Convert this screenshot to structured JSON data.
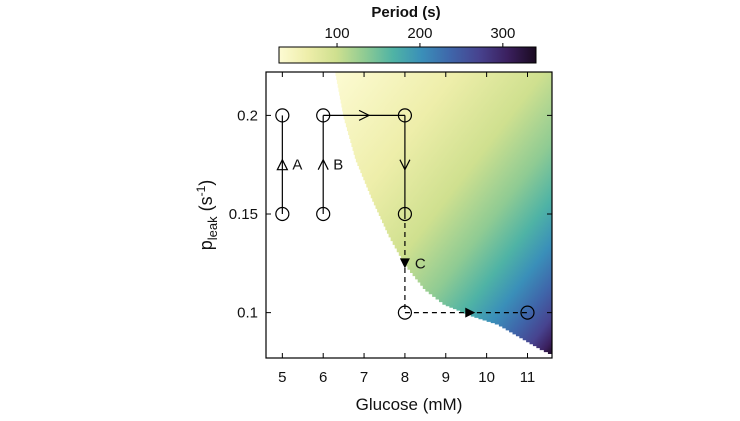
{
  "chart_data": {
    "type": "heatmap",
    "xlabel": "Glucose (mM)",
    "ylabel_base": "p",
    "ylabel_sub": "leak",
    "ylabel_unit_open": " (s",
    "ylabel_unit_sup": "-1",
    "ylabel_unit_close": ")",
    "xticks": [
      5,
      6,
      7,
      8,
      9,
      10,
      11
    ],
    "xtick_labels": [
      "5",
      "6",
      "7",
      "8",
      "9",
      "10",
      "11"
    ],
    "yticks": [
      0.1,
      0.15,
      0.2
    ],
    "ytick_labels": [
      "0.1",
      "0.15",
      "0.2"
    ],
    "xlim": [
      4.6,
      11.6
    ],
    "ylim": [
      0.077,
      0.222
    ],
    "colorbar": {
      "title": "Period (s)",
      "range": [
        30,
        340
      ],
      "ticks": [
        100,
        200,
        300
      ],
      "tick_labels": [
        "100",
        "200",
        "300"
      ],
      "colormap": [
        "#fdfbd3",
        "#eeeeaa",
        "#cfe08f",
        "#8fcb93",
        "#4fb3a5",
        "#3a8fb9",
        "#3f66aa",
        "#47438f",
        "#3b205f",
        "#1a0a20"
      ]
    },
    "region": {
      "boundary": [
        {
          "glucose": 6.3,
          "pleak": 0.222
        },
        {
          "glucose": 6.5,
          "pleak": 0.2
        },
        {
          "glucose": 6.8,
          "pleak": 0.178
        },
        {
          "glucose": 7.2,
          "pleak": 0.158
        },
        {
          "glucose": 7.6,
          "pleak": 0.14
        },
        {
          "glucose": 8.0,
          "pleak": 0.125
        },
        {
          "glucose": 8.5,
          "pleak": 0.112
        },
        {
          "glucose": 9.0,
          "pleak": 0.104
        },
        {
          "glucose": 9.7,
          "pleak": 0.098
        },
        {
          "glucose": 10.3,
          "pleak": 0.094
        },
        {
          "glucose": 10.8,
          "pleak": 0.088
        },
        {
          "glucose": 11.3,
          "pleak": 0.082
        },
        {
          "glucose": 11.6,
          "pleak": 0.079
        }
      ],
      "period_range": [
        30,
        340
      ]
    },
    "points": [
      {
        "glucose": 5,
        "pleak": 0.2
      },
      {
        "glucose": 5,
        "pleak": 0.15
      },
      {
        "glucose": 6,
        "pleak": 0.2
      },
      {
        "glucose": 6,
        "pleak": 0.15
      },
      {
        "glucose": 8,
        "pleak": 0.2
      },
      {
        "glucose": 8,
        "pleak": 0.15
      },
      {
        "glucose": 8,
        "pleak": 0.1
      },
      {
        "glucose": 11,
        "pleak": 0.1
      }
    ],
    "paths": [
      {
        "label": "A",
        "style": "solid",
        "arrow": "open-triangle-up",
        "segments": [
          [
            {
              "glucose": 5,
              "pleak": 0.15
            },
            {
              "glucose": 5,
              "pleak": 0.2
            }
          ]
        ],
        "arrow_at": {
          "glucose": 5,
          "pleak": 0.175
        }
      },
      {
        "label": "B",
        "style": "solid",
        "arrow": "chevron-up",
        "segments": [
          [
            {
              "glucose": 6,
              "pleak": 0.15
            },
            {
              "glucose": 6,
              "pleak": 0.2
            }
          ]
        ],
        "arrow_at": {
          "glucose": 6,
          "pleak": 0.175
        }
      },
      {
        "label": "",
        "style": "solid",
        "arrow": "chevron-right",
        "segments": [
          [
            {
              "glucose": 6,
              "pleak": 0.2
            },
            {
              "glucose": 8,
              "pleak": 0.2
            }
          ]
        ],
        "arrow_at": {
          "glucose": 7,
          "pleak": 0.2
        }
      },
      {
        "label": "",
        "style": "solid",
        "arrow": "chevron-down",
        "segments": [
          [
            {
              "glucose": 8,
              "pleak": 0.2
            },
            {
              "glucose": 8,
              "pleak": 0.15
            }
          ]
        ],
        "arrow_at": {
          "glucose": 8,
          "pleak": 0.175
        }
      },
      {
        "label": "C",
        "style": "dashed",
        "arrow": "filled-triangle-down",
        "segments": [
          [
            {
              "glucose": 8,
              "pleak": 0.15
            },
            {
              "glucose": 8,
              "pleak": 0.1
            }
          ]
        ],
        "arrow_at": {
          "glucose": 8,
          "pleak": 0.125
        }
      },
      {
        "label": "",
        "style": "dashed",
        "arrow": "filled-triangle-right",
        "segments": [
          [
            {
              "glucose": 8,
              "pleak": 0.1
            },
            {
              "glucose": 11,
              "pleak": 0.1
            }
          ]
        ],
        "arrow_at": {
          "glucose": 9.6,
          "pleak": 0.1
        }
      }
    ]
  }
}
